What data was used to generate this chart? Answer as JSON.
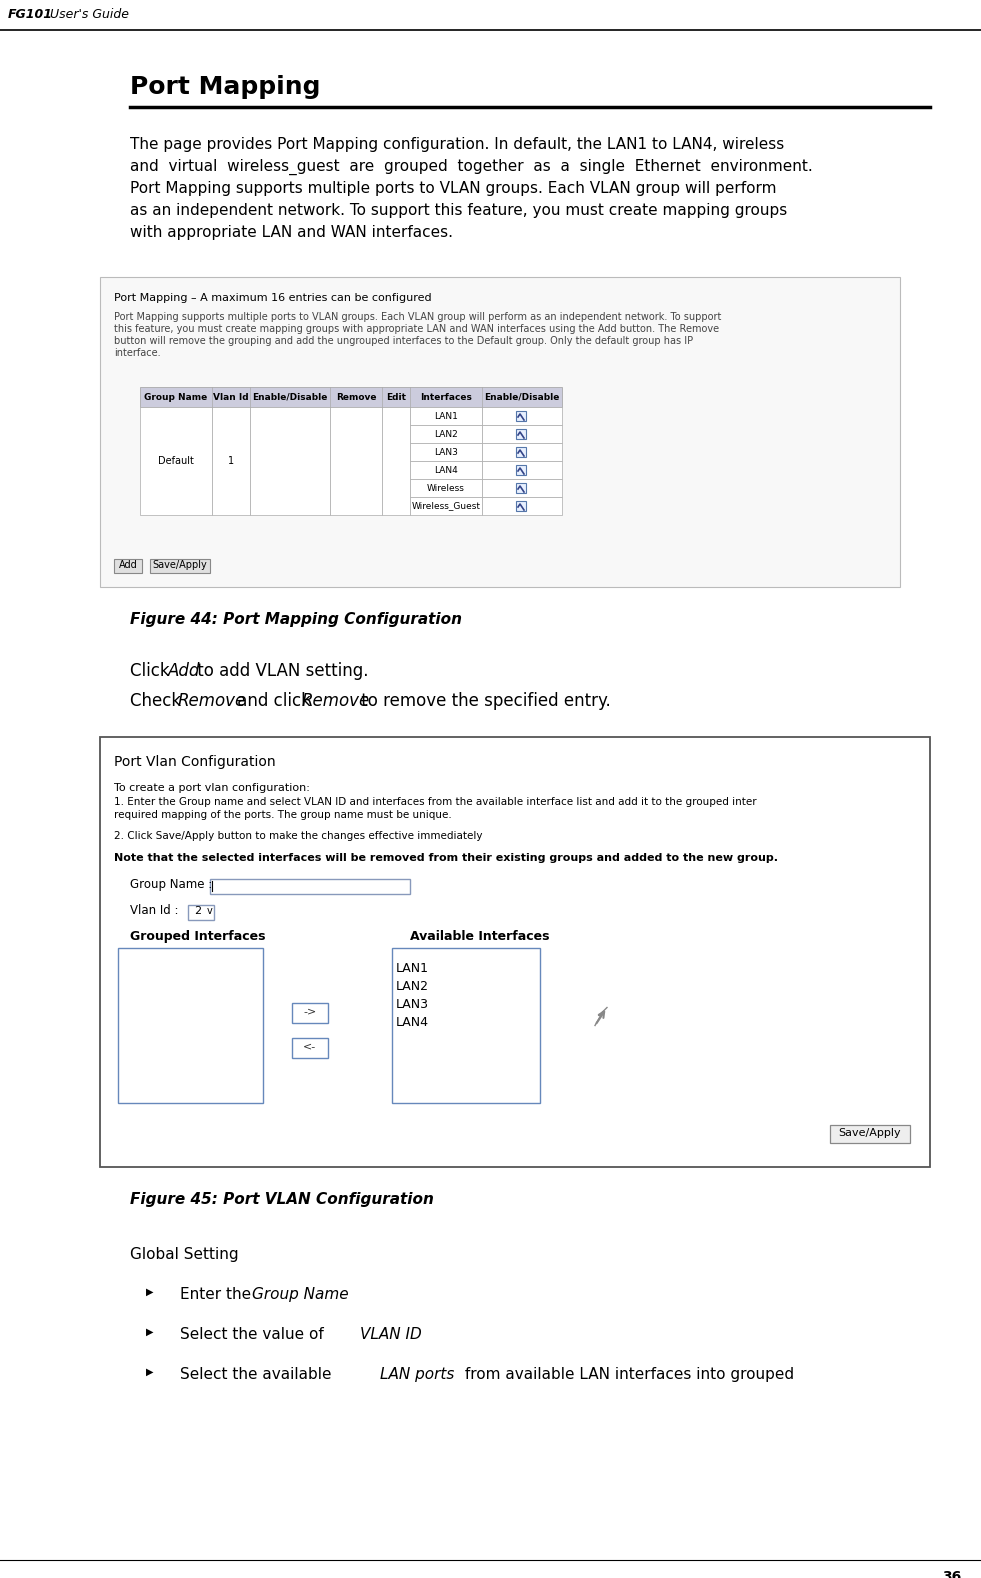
{
  "page_title_bold": "FG101",
  "page_title_normal": " User's Guide",
  "section_title": "Port Mapping",
  "body_lines": [
    "The page provides Port Mapping configuration. In default, the LAN1 to LAN4, wireless",
    "and  virtual  wireless_guest  are  grouped  together  as  a  single  Ethernet  environment.",
    "Port Mapping supports multiple ports to VLAN groups. Each VLAN group will perform",
    "as an independent network. To support this feature, you must create mapping groups",
    "with appropriate LAN and WAN interfaces."
  ],
  "fig44_caption": "Figure 44: Port Mapping Configuration",
  "fig44_header_text": "Port Mapping – A maximum 16 entries can be configured",
  "fig44_body_lines": [
    "Port Mapping supports multiple ports to VLAN groups. Each VLAN group will perform as an independent network. To support",
    "this feature, you must create mapping groups with appropriate LAN and WAN interfaces using the Add button. The Remove",
    "button will remove the grouping and add the ungrouped interfaces to the Default group. Only the default group has IP",
    "interface."
  ],
  "fig44_table_headers": [
    "Group Name",
    "Vlan Id",
    "Enable/Disable",
    "Remove",
    "Edit",
    "Interfaces",
    "Enable/Disable"
  ],
  "fig44_interfaces": [
    "LAN1",
    "LAN2",
    "LAN3",
    "LAN4",
    "Wireless",
    "Wireless_Guest"
  ],
  "fig44_add_btn": "Add",
  "fig44_save_btn": "Save/Apply",
  "fig45_caption": "Figure 45: Port VLAN Configuration",
  "fig45_title": "Port Vlan Configuration",
  "fig45_step1": "To create a port vlan configuration:",
  "fig45_step1b_lines": [
    "1. Enter the Group name and select VLAN ID and interfaces from the available interface list and add it to the grouped inter",
    "required mapping of the ports. The group name must be unique."
  ],
  "fig45_step2": "2. Click Save/Apply button to make the changes effective immediately",
  "fig45_note": "Note that the selected interfaces will be removed from their existing groups and added to the new group.",
  "fig45_groupname_label": "Group Name :",
  "fig45_vlanid_label": "Vlan Id : 2",
  "fig45_grouped_label": "Grouped Interfaces",
  "fig45_available_label": "Available Interfaces",
  "fig45_available_items": [
    "LAN1",
    "LAN2",
    "LAN3",
    "LAN4"
  ],
  "fig45_save_btn": "Save/Apply",
  "global_setting": "Global Setting",
  "page_number": "36",
  "bg_color": "#ffffff",
  "table_header_bg": "#ccccdd",
  "table_border": "#aaaaaa",
  "fig44_bg": "#f8f8f8",
  "fig45_border": "#555555",
  "fig45_listbox_border": "#6688bb"
}
